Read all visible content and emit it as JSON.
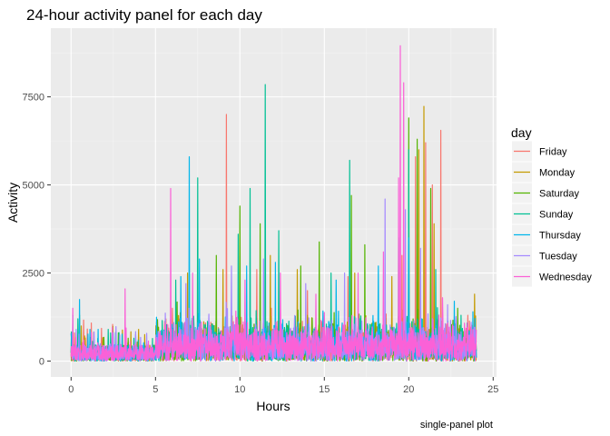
{
  "chart_data": {
    "type": "line",
    "title": "24-hour activity panel for each day",
    "xlabel": "Hours",
    "ylabel": "Activity",
    "caption": "single-panel plot",
    "xlim": [
      -1.2,
      25.2
    ],
    "ylim": [
      -450,
      9450
    ],
    "x_ticks": [
      0,
      5,
      10,
      15,
      20,
      25
    ],
    "x_tick_labels": [
      "0",
      "5",
      "10",
      "15",
      "20",
      "25"
    ],
    "y_ticks": [
      0,
      2500,
      5000,
      7500
    ],
    "y_tick_labels": [
      "0",
      "2500",
      "5000",
      "7500"
    ],
    "grid": true,
    "legend": {
      "title": "day",
      "position": "right"
    },
    "series": [
      {
        "name": "Friday",
        "color": "#F8766D",
        "peaks": [
          [
            0.2,
            800
          ],
          [
            3.2,
            600
          ],
          [
            6.0,
            1500
          ],
          [
            9.2,
            7000
          ],
          [
            11.0,
            2600
          ],
          [
            14.0,
            2000
          ],
          [
            16.4,
            2400
          ],
          [
            19.6,
            3000
          ],
          [
            20.4,
            5800
          ],
          [
            21.0,
            6200
          ],
          [
            21.4,
            5000
          ],
          [
            21.9,
            6550
          ],
          [
            23.5,
            1300
          ]
        ]
      },
      {
        "name": "Monday",
        "color": "#C49A00",
        "peaks": [
          [
            0.6,
            1000
          ],
          [
            4.0,
            900
          ],
          [
            6.9,
            2500
          ],
          [
            9.0,
            2600
          ],
          [
            11.8,
            3000
          ],
          [
            13.4,
            2600
          ],
          [
            16.8,
            2500
          ],
          [
            19.0,
            2400
          ],
          [
            20.0,
            5300
          ],
          [
            20.6,
            6000
          ],
          [
            20.9,
            7230
          ],
          [
            21.5,
            3900
          ],
          [
            23.9,
            1900
          ]
        ]
      },
      {
        "name": "Saturday",
        "color": "#53B400",
        "peaks": [
          [
            0.5,
            1300
          ],
          [
            2.8,
            800
          ],
          [
            8.6,
            3000
          ],
          [
            10.0,
            4400
          ],
          [
            11.2,
            3900
          ],
          [
            13.6,
            2700
          ],
          [
            14.7,
            3380
          ],
          [
            16.6,
            4700
          ],
          [
            17.4,
            3300
          ],
          [
            20.0,
            6900
          ],
          [
            20.5,
            6300
          ],
          [
            21.3,
            4900
          ],
          [
            22.9,
            1500
          ]
        ]
      },
      {
        "name": "Sunday",
        "color": "#00C094",
        "peaks": [
          [
            0.4,
            1200
          ],
          [
            2.2,
            900
          ],
          [
            6.2,
            2300
          ],
          [
            7.5,
            5200
          ],
          [
            9.9,
            3600
          ],
          [
            10.6,
            4900
          ],
          [
            11.5,
            7850
          ],
          [
            12.3,
            3700
          ],
          [
            15.4,
            2500
          ],
          [
            16.5,
            5700
          ],
          [
            19.4,
            3500
          ],
          [
            20.0,
            6000
          ],
          [
            21.6,
            2600
          ],
          [
            23.1,
            1300
          ]
        ]
      },
      {
        "name": "Thursday",
        "color": "#00B6EB",
        "peaks": [
          [
            0.1,
            1300
          ],
          [
            0.5,
            1750
          ],
          [
            1.6,
            900
          ],
          [
            6.5,
            2400
          ],
          [
            7.0,
            5800
          ],
          [
            7.6,
            2900
          ],
          [
            10.4,
            2700
          ],
          [
            12.1,
            2800
          ],
          [
            15.7,
            2300
          ],
          [
            18.2,
            2700
          ],
          [
            20.0,
            3500
          ],
          [
            22.7,
            1700
          ],
          [
            23.8,
            1400
          ]
        ]
      },
      {
        "name": "Tuesday",
        "color": "#A58AFF",
        "peaks": [
          [
            0.3,
            900
          ],
          [
            2.5,
            800
          ],
          [
            6.8,
            2200
          ],
          [
            9.5,
            2700
          ],
          [
            11.4,
            2900
          ],
          [
            13.9,
            2200
          ],
          [
            16.2,
            2500
          ],
          [
            18.6,
            4600
          ],
          [
            19.8,
            4300
          ],
          [
            20.7,
            3200
          ],
          [
            22.3,
            1600
          ],
          [
            23.7,
            1100
          ]
        ]
      },
      {
        "name": "Wednesday",
        "color": "#FB61D7",
        "peaks": [
          [
            0.1,
            1500
          ],
          [
            3.2,
            2050
          ],
          [
            5.9,
            4900
          ],
          [
            7.2,
            2500
          ],
          [
            10.3,
            2300
          ],
          [
            12.4,
            2500
          ],
          [
            14.5,
            1900
          ],
          [
            17.0,
            2500
          ],
          [
            18.5,
            3100
          ],
          [
            19.4,
            5200
          ],
          [
            19.5,
            8950
          ],
          [
            19.7,
            7900
          ],
          [
            22.0,
            1800
          ],
          [
            23.5,
            900
          ]
        ]
      }
    ]
  }
}
